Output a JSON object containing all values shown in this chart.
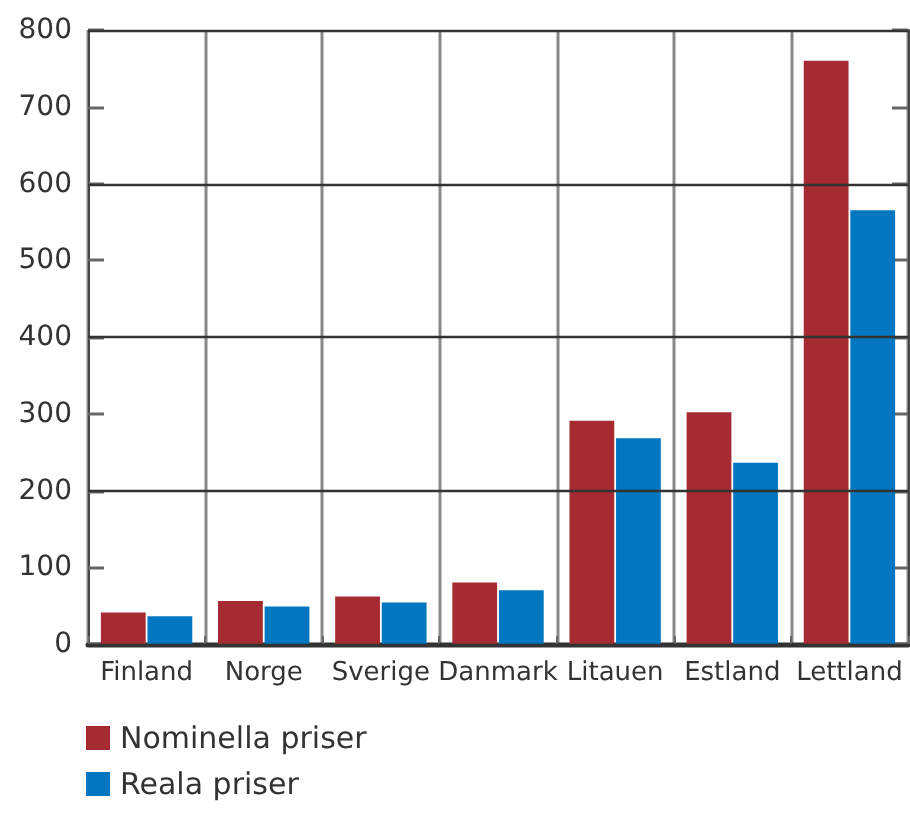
{
  "chart_data": {
    "type": "bar",
    "categories": [
      "Finland",
      "Norge",
      "Sverige",
      "Danmark",
      "Litauen",
      "Estland",
      "Lettland"
    ],
    "series": [
      {
        "name": "Nominella priser",
        "color": "#a52a32",
        "values": [
          41,
          56,
          62,
          80,
          291,
          302,
          760
        ]
      },
      {
        "name": "Reala priser",
        "color": "#0077c0",
        "values": [
          36,
          49,
          54,
          70,
          268,
          236,
          565
        ]
      }
    ],
    "ylim": [
      0,
      800
    ],
    "yticks": [
      0,
      100,
      200,
      300,
      400,
      500,
      600,
      700,
      800
    ],
    "grid": true,
    "legend": "bottom left"
  }
}
